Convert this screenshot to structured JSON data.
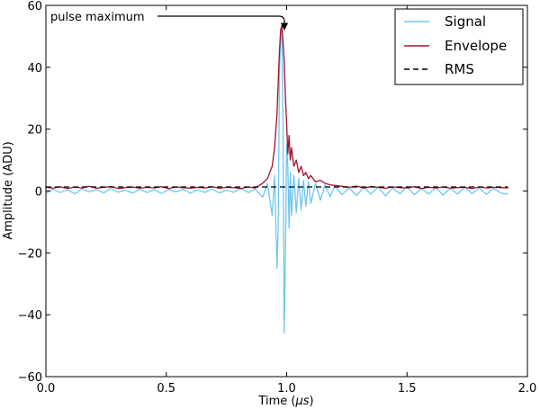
{
  "chart_data": {
    "type": "line",
    "xlabel": "Time (μs)",
    "ylabel": "Amplitude (ADU)",
    "xlim": [
      0.0,
      2.0
    ],
    "ylim": [
      -60,
      60
    ],
    "xticks": [
      "0.0",
      "0.5",
      "1.0",
      "1.5",
      "2.0"
    ],
    "yticks": [
      "−60",
      "−40",
      "−20",
      "0",
      "20",
      "40",
      "60"
    ],
    "legend_placement": "top-right",
    "annotation": {
      "text": "pulse maximum",
      "x": 0.98,
      "y": 53.5
    },
    "series": [
      {
        "name": "Signal",
        "color": "#6ec6f0",
        "x": [
          0.0,
          0.03,
          0.06,
          0.09,
          0.12,
          0.15,
          0.18,
          0.21,
          0.24,
          0.27,
          0.3,
          0.33,
          0.36,
          0.39,
          0.42,
          0.45,
          0.48,
          0.51,
          0.54,
          0.57,
          0.6,
          0.63,
          0.66,
          0.69,
          0.72,
          0.75,
          0.78,
          0.81,
          0.84,
          0.87,
          0.9,
          0.92,
          0.94,
          0.95,
          0.96,
          0.965,
          0.97,
          0.975,
          0.98,
          0.985,
          0.99,
          0.995,
          1.0,
          1.005,
          1.01,
          1.015,
          1.02,
          1.03,
          1.04,
          1.05,
          1.06,
          1.07,
          1.08,
          1.09,
          1.1,
          1.12,
          1.14,
          1.16,
          1.18,
          1.2,
          1.23,
          1.26,
          1.29,
          1.32,
          1.35,
          1.38,
          1.41,
          1.44,
          1.47,
          1.5,
          1.53,
          1.56,
          1.59,
          1.62,
          1.65,
          1.68,
          1.71,
          1.74,
          1.77,
          1.8,
          1.83,
          1.86,
          1.89,
          1.92
        ],
        "y": [
          -0.8,
          0.6,
          -0.5,
          0.4,
          -0.9,
          0.7,
          -0.3,
          0.5,
          -0.6,
          0.8,
          -0.4,
          0.3,
          -0.7,
          0.6,
          -0.5,
          0.4,
          -0.8,
          0.5,
          -0.3,
          0.6,
          -0.7,
          0.4,
          -0.5,
          0.7,
          -0.6,
          0.3,
          -0.4,
          0.8,
          -0.5,
          0.6,
          -2.0,
          2.5,
          -8.0,
          5.0,
          -25.0,
          -12.0,
          38.0,
          50.0,
          52.0,
          20.0,
          -46.0,
          -20.0,
          15.0,
          8.0,
          -12.0,
          6.0,
          -8.0,
          5.0,
          -7.0,
          4.0,
          -6.0,
          3.5,
          -5.0,
          3.0,
          -4.0,
          2.5,
          -3.0,
          2.0,
          -1.8,
          1.5,
          -1.2,
          1.0,
          -1.5,
          1.2,
          -1.0,
          1.3,
          -1.6,
          1.0,
          -0.9,
          1.4,
          -1.2,
          0.8,
          -1.0,
          1.1,
          -1.3,
          0.9,
          -1.0,
          1.2,
          -0.8,
          1.0,
          -1.1,
          0.9,
          -0.7,
          -1.0
        ]
      },
      {
        "name": "Envelope",
        "color": "#a3122d",
        "x": [
          0.0,
          0.03,
          0.06,
          0.09,
          0.12,
          0.15,
          0.18,
          0.21,
          0.24,
          0.27,
          0.3,
          0.33,
          0.36,
          0.39,
          0.42,
          0.45,
          0.48,
          0.51,
          0.54,
          0.57,
          0.6,
          0.63,
          0.66,
          0.69,
          0.72,
          0.75,
          0.78,
          0.81,
          0.84,
          0.87,
          0.9,
          0.92,
          0.94,
          0.95,
          0.96,
          0.965,
          0.97,
          0.975,
          0.98,
          0.985,
          0.99,
          0.995,
          1.0,
          1.005,
          1.01,
          1.015,
          1.02,
          1.03,
          1.04,
          1.05,
          1.06,
          1.07,
          1.08,
          1.09,
          1.1,
          1.12,
          1.14,
          1.16,
          1.18,
          1.2,
          1.23,
          1.26,
          1.29,
          1.32,
          1.35,
          1.38,
          1.41,
          1.44,
          1.47,
          1.5,
          1.53,
          1.56,
          1.59,
          1.62,
          1.65,
          1.68,
          1.71,
          1.74,
          1.77,
          1.8,
          1.83,
          1.86,
          1.89,
          1.92
        ],
        "y": [
          1.2,
          0.9,
          1.4,
          0.8,
          1.3,
          1.0,
          1.5,
          0.9,
          1.2,
          1.4,
          0.8,
          1.1,
          1.3,
          0.9,
          1.2,
          1.0,
          1.4,
          0.8,
          1.3,
          1.1,
          0.9,
          1.2,
          1.0,
          1.4,
          0.9,
          1.2,
          1.1,
          0.8,
          1.3,
          1.0,
          2.5,
          4.0,
          8.0,
          14.0,
          25.0,
          35.0,
          45.0,
          52.0,
          53.5,
          48.0,
          42.0,
          30.0,
          22.0,
          12.0,
          18.0,
          10.0,
          14.0,
          8.0,
          10.0,
          6.0,
          8.0,
          5.0,
          6.0,
          4.0,
          5.0,
          3.0,
          3.5,
          2.5,
          2.0,
          1.8,
          1.5,
          1.2,
          1.6,
          1.0,
          1.4,
          1.2,
          0.9,
          1.3,
          1.1,
          1.0,
          1.4,
          0.8,
          1.2,
          1.0,
          1.3,
          0.9,
          1.1,
          1.2,
          0.8,
          1.3,
          1.0,
          1.2,
          1.1,
          1.0
        ]
      },
      {
        "name": "RMS",
        "color": "#000000",
        "dashed": true,
        "x": [
          0.0,
          1.92
        ],
        "y": [
          1.3,
          1.3
        ]
      }
    ]
  }
}
